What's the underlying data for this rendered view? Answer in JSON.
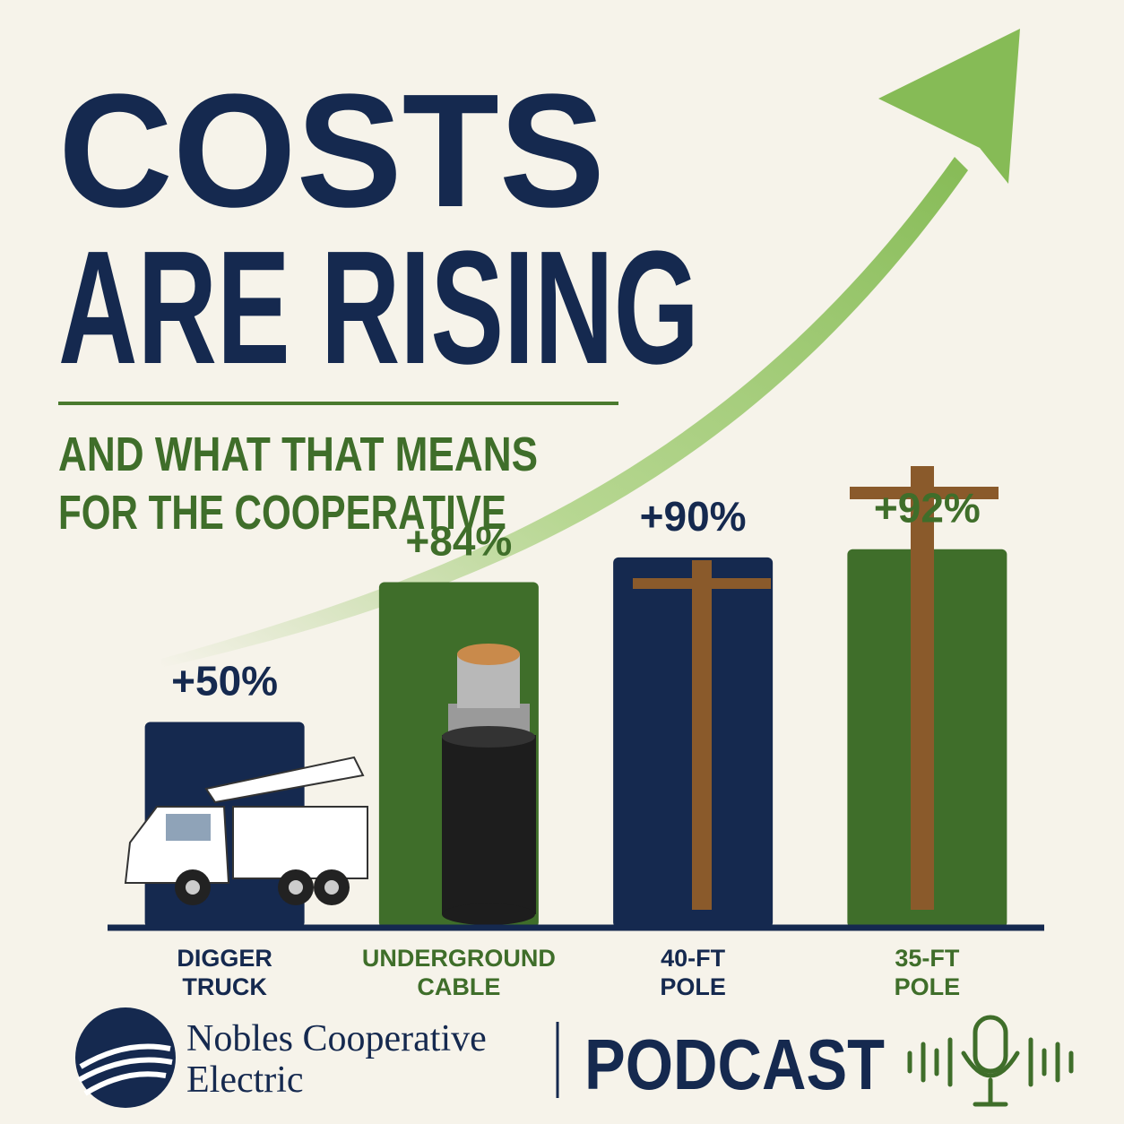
{
  "chart_data": {
    "type": "bar",
    "title": [
      "COSTS",
      "ARE RISING"
    ],
    "subtitle": [
      "AND WHAT THAT MEANS",
      "FOR THE COOPERATIVE"
    ],
    "categories": [
      "DIGGER TRUCK",
      "UNDERGROUND CABLE",
      "40-FT POLE",
      "35-FT POLE"
    ],
    "values": [
      50,
      84,
      90,
      92
    ],
    "value_labels": [
      "+50%",
      "+84%",
      "+90%",
      "+92%"
    ],
    "colors": [
      "#15294f",
      "#3f6e2a",
      "#15294f",
      "#3f6e2a"
    ],
    "ylim": [
      0,
      100
    ]
  },
  "footer": {
    "brand": [
      "Nobles Cooperative",
      "Electric"
    ],
    "podcast": "PODCAST"
  }
}
